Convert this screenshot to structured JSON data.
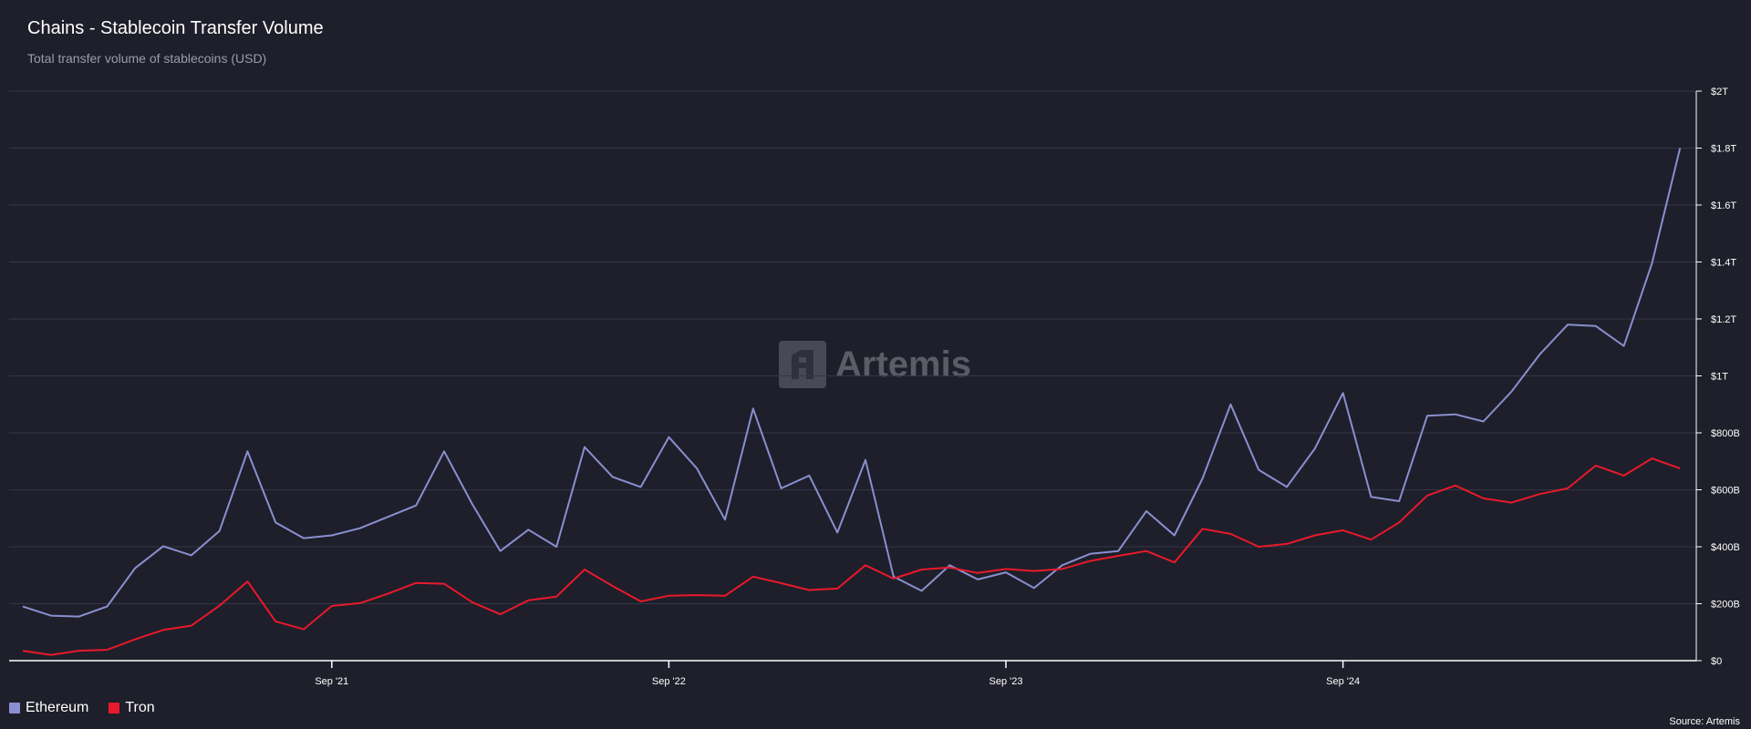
{
  "header": {
    "title": "Chains - Stablecoin Transfer Volume",
    "subtitle": "Total transfer volume of stablecoins (USD)"
  },
  "watermark": {
    "text": "Artemis"
  },
  "source": "Source: Artemis",
  "legend": [
    {
      "label": "Ethereum",
      "color": "#8a8fd0"
    },
    {
      "label": "Tron",
      "color": "#e8192c"
    }
  ],
  "chart_data": {
    "type": "line",
    "title": "Chains - Stablecoin Transfer Volume",
    "subtitle": "Total transfer volume of stablecoins (USD)",
    "xlabel": "",
    "ylabel": "",
    "ylim": [
      0,
      2000
    ],
    "y_unit": "billions USD",
    "y_ticks": [
      {
        "value": 0,
        "label": "$0"
      },
      {
        "value": 200,
        "label": "$200B"
      },
      {
        "value": 400,
        "label": "$400B"
      },
      {
        "value": 600,
        "label": "$600B"
      },
      {
        "value": 800,
        "label": "$800B"
      },
      {
        "value": 1000,
        "label": "$1T"
      },
      {
        "value": 1200,
        "label": "$1.2T"
      },
      {
        "value": 1400,
        "label": "$1.4T"
      },
      {
        "value": 1600,
        "label": "$1.6T"
      },
      {
        "value": 1800,
        "label": "$1.8T"
      },
      {
        "value": 2000,
        "label": "$2T"
      }
    ],
    "x": [
      "2020-10",
      "2020-11",
      "2020-12",
      "2021-01",
      "2021-02",
      "2021-03",
      "2021-04",
      "2021-05",
      "2021-06",
      "2021-07",
      "2021-08",
      "2021-09",
      "2021-10",
      "2021-11",
      "2021-12",
      "2022-01",
      "2022-02",
      "2022-03",
      "2022-04",
      "2022-05",
      "2022-06",
      "2022-07",
      "2022-08",
      "2022-09",
      "2022-10",
      "2022-11",
      "2022-12",
      "2023-01",
      "2023-02",
      "2023-03",
      "2023-04",
      "2023-05",
      "2023-06",
      "2023-07",
      "2023-08",
      "2023-09",
      "2023-10",
      "2023-11",
      "2023-12",
      "2024-01",
      "2024-02",
      "2024-03",
      "2024-04",
      "2024-05",
      "2024-06",
      "2024-07",
      "2024-08",
      "2024-09",
      "2024-10",
      "2024-11",
      "2024-12",
      "2025-01",
      "2025-02",
      "2025-03",
      "2025-04",
      "2025-05",
      "2025-06",
      "2025-07",
      "2025-08",
      "2025-09",
      "2025-10"
    ],
    "x_ticks": [
      {
        "value": "2021-09",
        "label": "Sep '21"
      },
      {
        "value": "2022-09",
        "label": "Sep '22"
      },
      {
        "value": "2023-09",
        "label": "Sep '23"
      },
      {
        "value": "2024-09",
        "label": "Sep '24"
      }
    ],
    "grid": true,
    "legend_position": "bottom-left",
    "series": [
      {
        "name": "Ethereum",
        "color": "#8a8fd0",
        "values": [
          190,
          158,
          155,
          190,
          325,
          402,
          370,
          455,
          735,
          485,
          430,
          440,
          465,
          505,
          545,
          735,
          550,
          385,
          460,
          400,
          750,
          645,
          610,
          785,
          675,
          495,
          885,
          605,
          650,
          450,
          705,
          295,
          245,
          335,
          285,
          310,
          255,
          335,
          375,
          385,
          525,
          440,
          640,
          900,
          670,
          610,
          745,
          940,
          575,
          560,
          860,
          865,
          840,
          945,
          1075,
          1180,
          1175,
          1105,
          1395,
          1800,
          null
        ]
      },
      {
        "name": "Tron",
        "color": "#e8192c",
        "values": [
          35,
          20,
          35,
          38,
          75,
          108,
          123,
          193,
          278,
          138,
          110,
          192,
          202,
          235,
          273,
          270,
          205,
          163,
          212,
          225,
          320,
          262,
          208,
          228,
          230,
          228,
          295,
          272,
          248,
          253,
          335,
          288,
          320,
          327,
          308,
          322,
          315,
          322,
          350,
          368,
          385,
          345,
          463,
          445,
          400,
          410,
          440,
          458,
          425,
          485,
          580,
          615,
          570,
          555,
          585,
          605,
          685,
          650,
          710,
          675,
          null
        ]
      }
    ]
  }
}
